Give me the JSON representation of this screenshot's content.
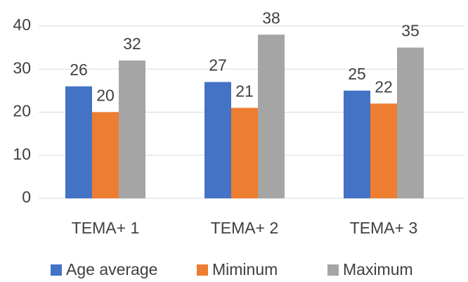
{
  "chart_data": {
    "type": "bar",
    "categories": [
      "TEMA+ 1",
      "TEMA+ 2",
      "TEMA+ 3"
    ],
    "series": [
      {
        "name": "Age average",
        "color": "#4472c4",
        "values": [
          26,
          27,
          25
        ]
      },
      {
        "name": "Miminum",
        "color": "#ed7d31",
        "values": [
          20,
          21,
          22
        ]
      },
      {
        "name": "Maximum",
        "color": "#a5a5a5",
        "values": [
          32,
          38,
          35
        ]
      }
    ],
    "ylim": [
      0,
      40
    ],
    "yticks": [
      0,
      10,
      20,
      30,
      40
    ],
    "grid": true,
    "legend": "bottom"
  }
}
